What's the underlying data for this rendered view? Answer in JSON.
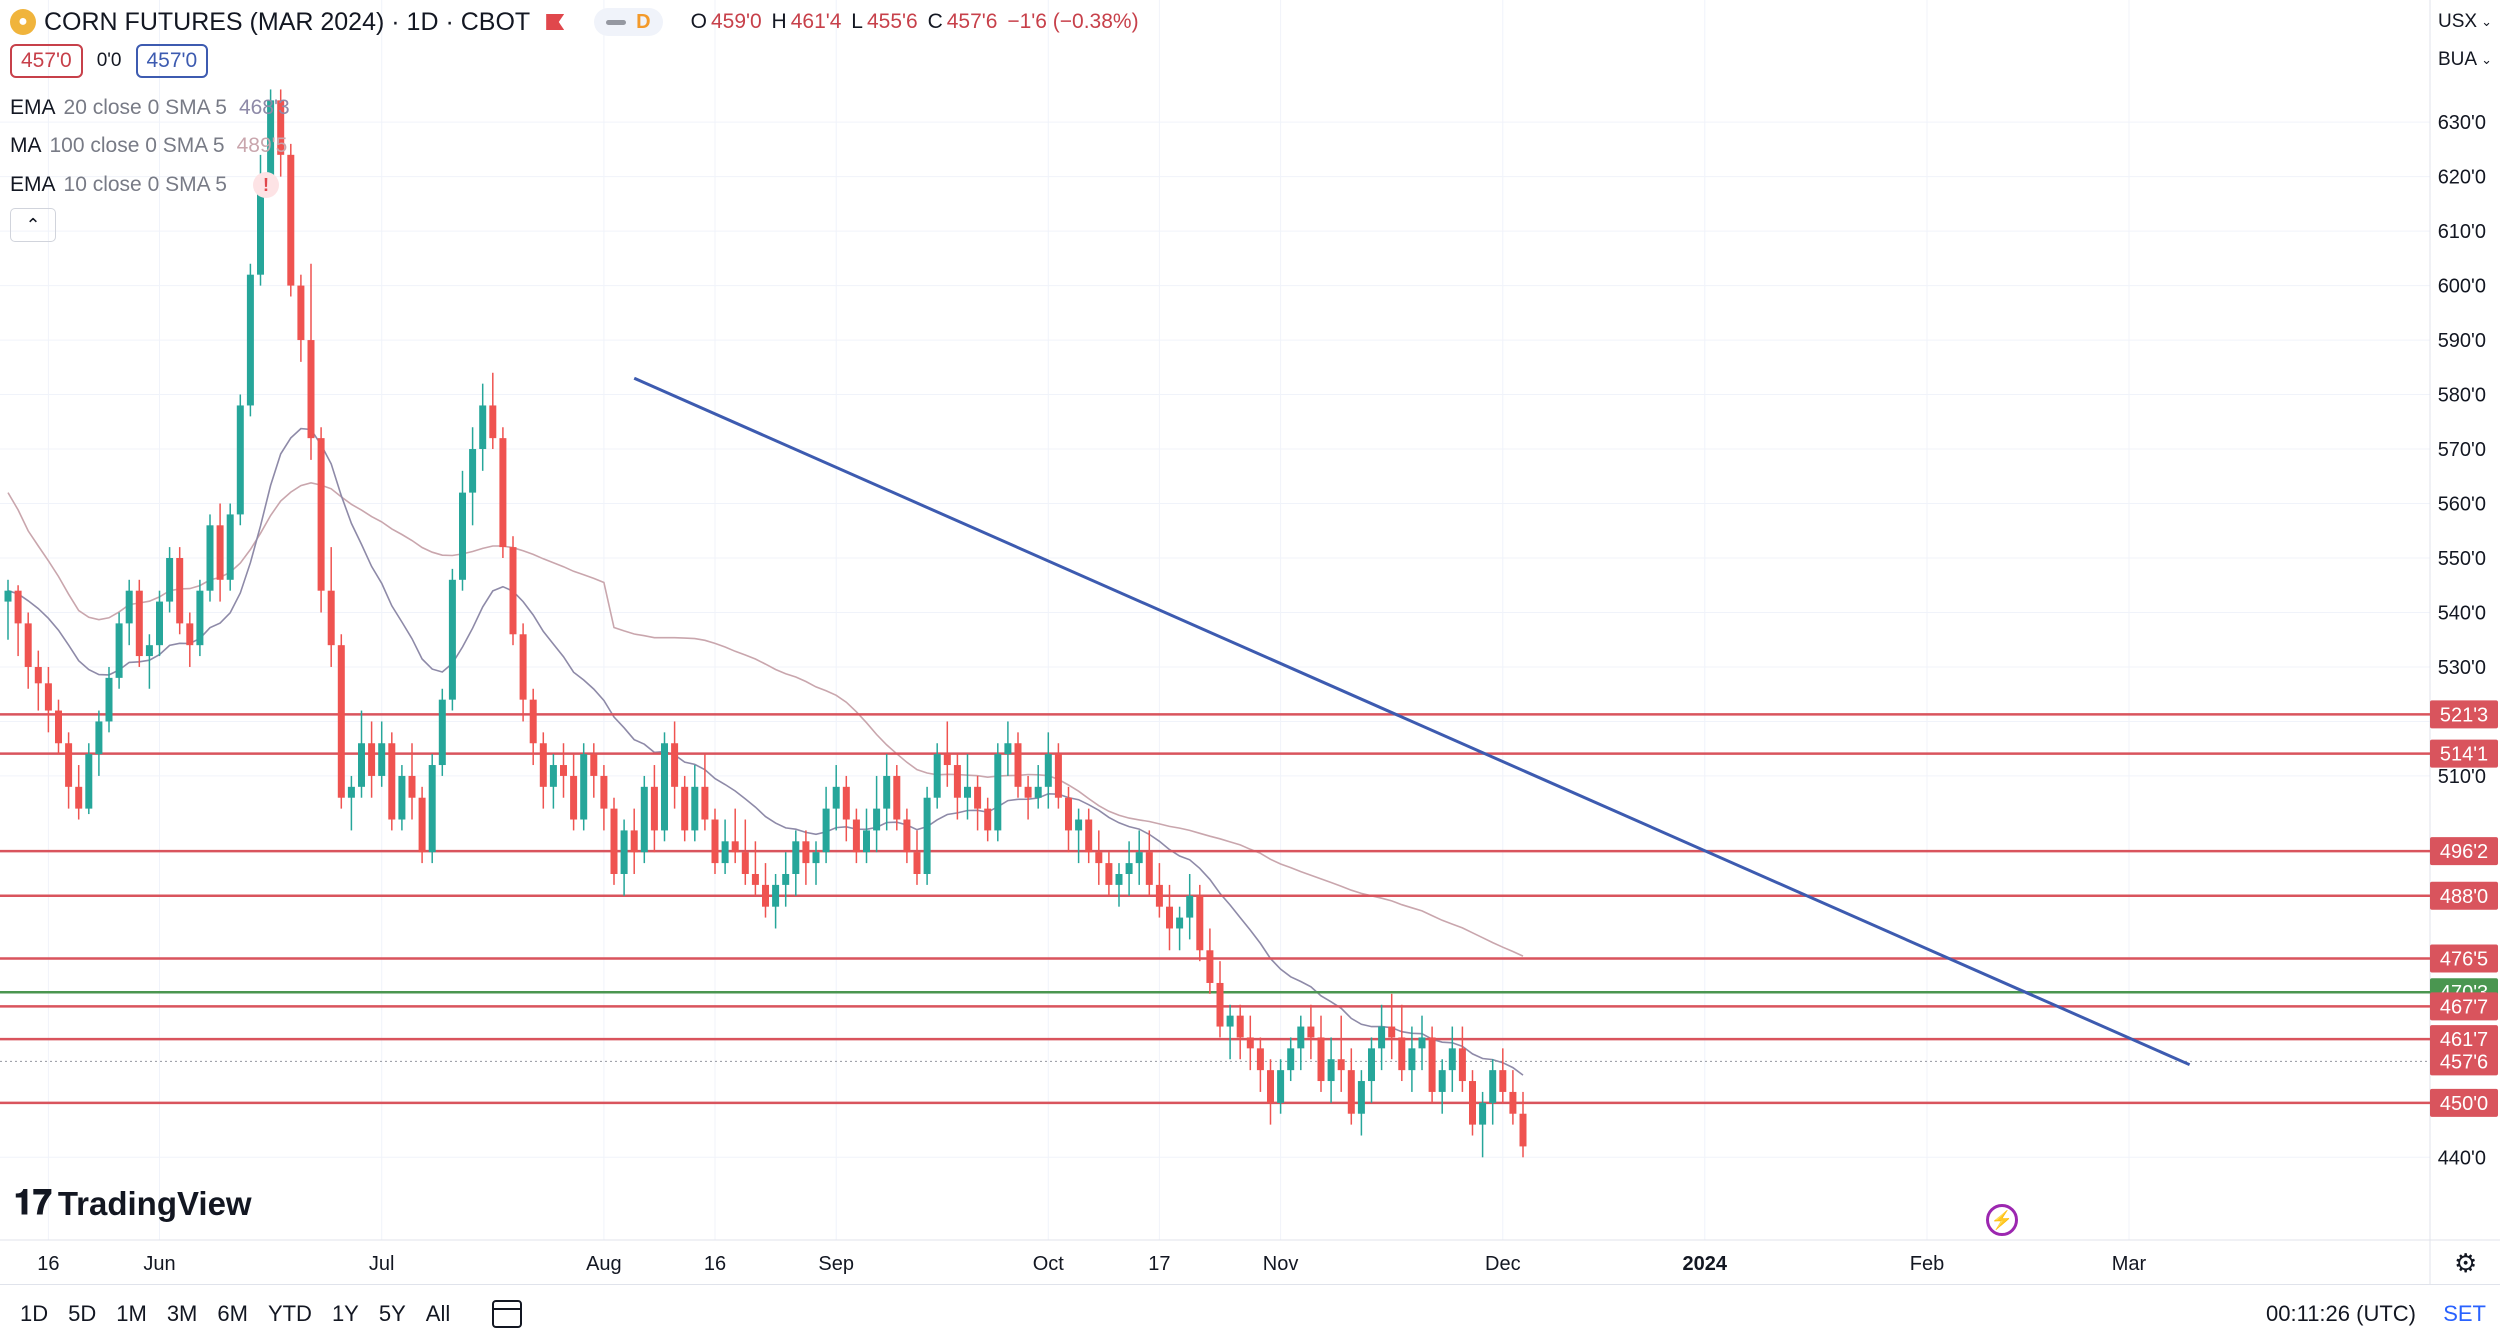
{
  "header": {
    "title": "CORN FUTURES (MAR 2024) · 1D · CBOT",
    "session_badge": "D",
    "ohlc": {
      "o_label": "O",
      "o": "459'0",
      "h_label": "H",
      "h": "461'4",
      "l_label": "L",
      "l": "455'6",
      "c_label": "C",
      "c": "457'6",
      "change": "−1'6 (−0.38%)"
    },
    "bid": "457'0",
    "spread": "0'0",
    "ask": "457'0"
  },
  "indicators": [
    {
      "name": "EMA",
      "params": "20 close 0 SMA 5",
      "value": "468'3",
      "color": "#8e8aa8"
    },
    {
      "name": "MA",
      "params": "100 close 0 SMA 5",
      "value": "489'5",
      "color": "#c9a6ad"
    },
    {
      "name": "EMA",
      "params": "10 close 0 SMA 5",
      "value": "",
      "color": "#e0474c"
    }
  ],
  "collapse_label": "⌃",
  "units": [
    "USX",
    "BUA"
  ],
  "colors": {
    "up": "#26a69a",
    "down": "#ef5350",
    "trend": "#3d5bb0",
    "support": "#d9545d",
    "green_line": "#4a9650",
    "ema20": "#8e8aa8",
    "ma100": "#c9a6ad"
  },
  "chart_data": {
    "type": "candlestick",
    "title": "CORN FUTURES (MAR 2024) · 1D · CBOT",
    "ylim": [
      434,
      637
    ],
    "y_ticks": [
      {
        "v": 440,
        "label": "440'0"
      },
      {
        "v": 510,
        "label": "510'0"
      },
      {
        "v": 520,
        "label": ""
      },
      {
        "v": 530,
        "label": "530'0"
      },
      {
        "v": 540,
        "label": "540'0"
      },
      {
        "v": 550,
        "label": "550'0"
      },
      {
        "v": 560,
        "label": "560'0"
      },
      {
        "v": 570,
        "label": "570'0"
      },
      {
        "v": 580,
        "label": "580'0"
      },
      {
        "v": 590,
        "label": "590'0"
      },
      {
        "v": 600,
        "label": "600'0"
      },
      {
        "v": 610,
        "label": "610'0"
      },
      {
        "v": 620,
        "label": "620'0"
      },
      {
        "v": 630,
        "label": "630'0"
      }
    ],
    "x_ticks": [
      {
        "i": 4,
        "label": "16",
        "bold": false
      },
      {
        "i": 15,
        "label": "Jun",
        "bold": false
      },
      {
        "i": 37,
        "label": "Jul",
        "bold": false
      },
      {
        "i": 59,
        "label": "Aug",
        "bold": false
      },
      {
        "i": 70,
        "label": "16",
        "bold": false
      },
      {
        "i": 82,
        "label": "Sep",
        "bold": false
      },
      {
        "i": 103,
        "label": "Oct",
        "bold": false
      },
      {
        "i": 114,
        "label": "17",
        "bold": false
      },
      {
        "i": 126,
        "label": "Nov",
        "bold": false
      },
      {
        "i": 148,
        "label": "Dec",
        "bold": false
      },
      {
        "i": 168,
        "label": "2024",
        "bold": true
      },
      {
        "i": 190,
        "label": "Feb",
        "bold": false
      },
      {
        "i": 210,
        "label": "Mar",
        "bold": false
      }
    ],
    "ohlc": [
      [
        542,
        546,
        535,
        544
      ],
      [
        544,
        545,
        532,
        538
      ],
      [
        538,
        540,
        526,
        530
      ],
      [
        530,
        533,
        522,
        527
      ],
      [
        527,
        530,
        518,
        522
      ],
      [
        522,
        524,
        514,
        516
      ],
      [
        516,
        518,
        504,
        508
      ],
      [
        508,
        512,
        502,
        504
      ],
      [
        504,
        516,
        503,
        514
      ],
      [
        514,
        522,
        510,
        520
      ],
      [
        520,
        530,
        518,
        528
      ],
      [
        528,
        540,
        526,
        538
      ],
      [
        538,
        546,
        534,
        544
      ],
      [
        544,
        546,
        530,
        532
      ],
      [
        532,
        536,
        526,
        534
      ],
      [
        534,
        544,
        532,
        542
      ],
      [
        542,
        552,
        540,
        550
      ],
      [
        550,
        552,
        536,
        538
      ],
      [
        538,
        540,
        530,
        534
      ],
      [
        534,
        546,
        532,
        544
      ],
      [
        544,
        558,
        542,
        556
      ],
      [
        556,
        560,
        542,
        546
      ],
      [
        546,
        560,
        544,
        558
      ],
      [
        558,
        580,
        556,
        578
      ],
      [
        578,
        604,
        576,
        602
      ],
      [
        602,
        624,
        600,
        620
      ],
      [
        620,
        636,
        618,
        634
      ],
      [
        634,
        636,
        620,
        624
      ],
      [
        624,
        626,
        598,
        600
      ],
      [
        600,
        602,
        586,
        590
      ],
      [
        590,
        604,
        568,
        572
      ],
      [
        572,
        574,
        540,
        544
      ],
      [
        544,
        552,
        530,
        534
      ],
      [
        534,
        536,
        504,
        506
      ],
      [
        506,
        510,
        500,
        508
      ],
      [
        508,
        522,
        506,
        516
      ],
      [
        516,
        520,
        506,
        510
      ],
      [
        510,
        520,
        508,
        516
      ],
      [
        516,
        518,
        500,
        502
      ],
      [
        502,
        512,
        500,
        510
      ],
      [
        510,
        516,
        502,
        506
      ],
      [
        506,
        508,
        494,
        496
      ],
      [
        496,
        514,
        494,
        512
      ],
      [
        512,
        526,
        510,
        524
      ],
      [
        524,
        548,
        522,
        546
      ],
      [
        546,
        566,
        544,
        562
      ],
      [
        562,
        574,
        556,
        570
      ],
      [
        570,
        582,
        566,
        578
      ],
      [
        578,
        584,
        570,
        572
      ],
      [
        572,
        574,
        550,
        552
      ],
      [
        552,
        554,
        534,
        536
      ],
      [
        536,
        538,
        520,
        524
      ],
      [
        524,
        526,
        512,
        516
      ],
      [
        516,
        518,
        504,
        508
      ],
      [
        508,
        514,
        504,
        512
      ],
      [
        512,
        516,
        506,
        510
      ],
      [
        510,
        514,
        500,
        502
      ],
      [
        502,
        516,
        500,
        514
      ],
      [
        514,
        516,
        506,
        510
      ],
      [
        510,
        512,
        500,
        504
      ],
      [
        504,
        506,
        490,
        492
      ],
      [
        492,
        502,
        488,
        500
      ],
      [
        500,
        504,
        492,
        496
      ],
      [
        496,
        510,
        494,
        508
      ],
      [
        508,
        512,
        496,
        500
      ],
      [
        500,
        518,
        498,
        516
      ],
      [
        516,
        520,
        504,
        508
      ],
      [
        508,
        510,
        498,
        500
      ],
      [
        500,
        512,
        498,
        508
      ],
      [
        508,
        514,
        500,
        502
      ],
      [
        502,
        504,
        492,
        494
      ],
      [
        494,
        502,
        492,
        498
      ],
      [
        498,
        504,
        494,
        496
      ],
      [
        496,
        502,
        490,
        492
      ],
      [
        492,
        498,
        488,
        490
      ],
      [
        490,
        494,
        484,
        486
      ],
      [
        486,
        492,
        482,
        490
      ],
      [
        490,
        496,
        486,
        492
      ],
      [
        492,
        500,
        488,
        498
      ],
      [
        498,
        500,
        490,
        494
      ],
      [
        494,
        498,
        490,
        496
      ],
      [
        496,
        508,
        494,
        504
      ],
      [
        504,
        512,
        500,
        508
      ],
      [
        508,
        510,
        498,
        502
      ],
      [
        502,
        504,
        494,
        496
      ],
      [
        496,
        504,
        494,
        500
      ],
      [
        500,
        510,
        496,
        504
      ],
      [
        504,
        514,
        500,
        510
      ],
      [
        510,
        512,
        500,
        502
      ],
      [
        502,
        504,
        494,
        496
      ],
      [
        496,
        500,
        490,
        492
      ],
      [
        492,
        508,
        490,
        506
      ],
      [
        506,
        516,
        504,
        514
      ],
      [
        514,
        520,
        508,
        512
      ],
      [
        512,
        514,
        502,
        506
      ],
      [
        506,
        514,
        502,
        508
      ],
      [
        508,
        510,
        500,
        504
      ],
      [
        504,
        506,
        498,
        500
      ],
      [
        500,
        516,
        498,
        514
      ],
      [
        514,
        520,
        510,
        516
      ],
      [
        516,
        518,
        506,
        508
      ],
      [
        508,
        510,
        502,
        506
      ],
      [
        506,
        512,
        504,
        508
      ],
      [
        508,
        518,
        504,
        514
      ],
      [
        514,
        516,
        504,
        506
      ],
      [
        506,
        508,
        496,
        500
      ],
      [
        500,
        504,
        494,
        502
      ],
      [
        502,
        504,
        494,
        496
      ],
      [
        496,
        500,
        490,
        494
      ],
      [
        494,
        496,
        488,
        490
      ],
      [
        490,
        494,
        486,
        492
      ],
      [
        492,
        498,
        488,
        494
      ],
      [
        494,
        500,
        490,
        496
      ],
      [
        496,
        500,
        488,
        490
      ],
      [
        490,
        494,
        484,
        486
      ],
      [
        486,
        490,
        478,
        482
      ],
      [
        482,
        486,
        478,
        484
      ],
      [
        484,
        492,
        480,
        488
      ],
      [
        488,
        490,
        476,
        478
      ],
      [
        478,
        482,
        470,
        472
      ],
      [
        472,
        476,
        462,
        464
      ],
      [
        464,
        468,
        458,
        466
      ],
      [
        466,
        468,
        458,
        462
      ],
      [
        462,
        466,
        456,
        460
      ],
      [
        460,
        462,
        452,
        456
      ],
      [
        456,
        458,
        446,
        450
      ],
      [
        450,
        458,
        448,
        456
      ],
      [
        456,
        462,
        454,
        460
      ],
      [
        460,
        466,
        456,
        464
      ],
      [
        464,
        468,
        458,
        462
      ],
      [
        462,
        466,
        452,
        454
      ],
      [
        454,
        462,
        450,
        458
      ],
      [
        458,
        466,
        452,
        456
      ],
      [
        456,
        460,
        446,
        448
      ],
      [
        448,
        456,
        444,
        454
      ],
      [
        454,
        462,
        450,
        460
      ],
      [
        460,
        468,
        456,
        464
      ],
      [
        464,
        470,
        458,
        462
      ],
      [
        462,
        468,
        454,
        456
      ],
      [
        456,
        464,
        452,
        460
      ],
      [
        460,
        466,
        456,
        462
      ],
      [
        462,
        464,
        450,
        452
      ],
      [
        452,
        458,
        448,
        456
      ],
      [
        456,
        464,
        452,
        460
      ],
      [
        460,
        464,
        452,
        454
      ],
      [
        454,
        456,
        444,
        446
      ],
      [
        446,
        452,
        440,
        450
      ],
      [
        450,
        458,
        446,
        456
      ],
      [
        456,
        460,
        450,
        452
      ],
      [
        452,
        456,
        446,
        448
      ],
      [
        448,
        452,
        440,
        442
      ]
    ],
    "candles_note": "",
    "ema20_label": "EMA 20",
    "ma100_label": "MA 100",
    "hlines": [
      {
        "price": 521.3,
        "label": "521'3",
        "color": "#d9545d"
      },
      {
        "price": 514.1,
        "label": "514'1",
        "color": "#d9545d"
      },
      {
        "price": 496.2,
        "label": "496'2",
        "color": "#d9545d"
      },
      {
        "price": 488.0,
        "label": "488'0",
        "color": "#d9545d"
      },
      {
        "price": 476.5,
        "label": "476'5",
        "color": "#d9545d"
      },
      {
        "price": 470.3,
        "label": "470'3",
        "color": "#4a9650"
      },
      {
        "price": 467.7,
        "label": "467'7",
        "color": "#d9545d"
      },
      {
        "price": 461.7,
        "label": "461'7",
        "color": "#d9545d"
      },
      {
        "price": 450.0,
        "label": "450'0",
        "color": "#d9545d"
      }
    ],
    "last_price": {
      "price": 457.6,
      "label": "457'6"
    },
    "trendline": {
      "i1": 62,
      "p1": 583,
      "i2": 216,
      "p2": 457
    }
  },
  "range_buttons": [
    "1D",
    "5D",
    "1M",
    "3M",
    "6M",
    "YTD",
    "1Y",
    "5Y",
    "All"
  ],
  "clock": "00:11:26 (UTC)",
  "session": "SET",
  "brand": "TradingView"
}
